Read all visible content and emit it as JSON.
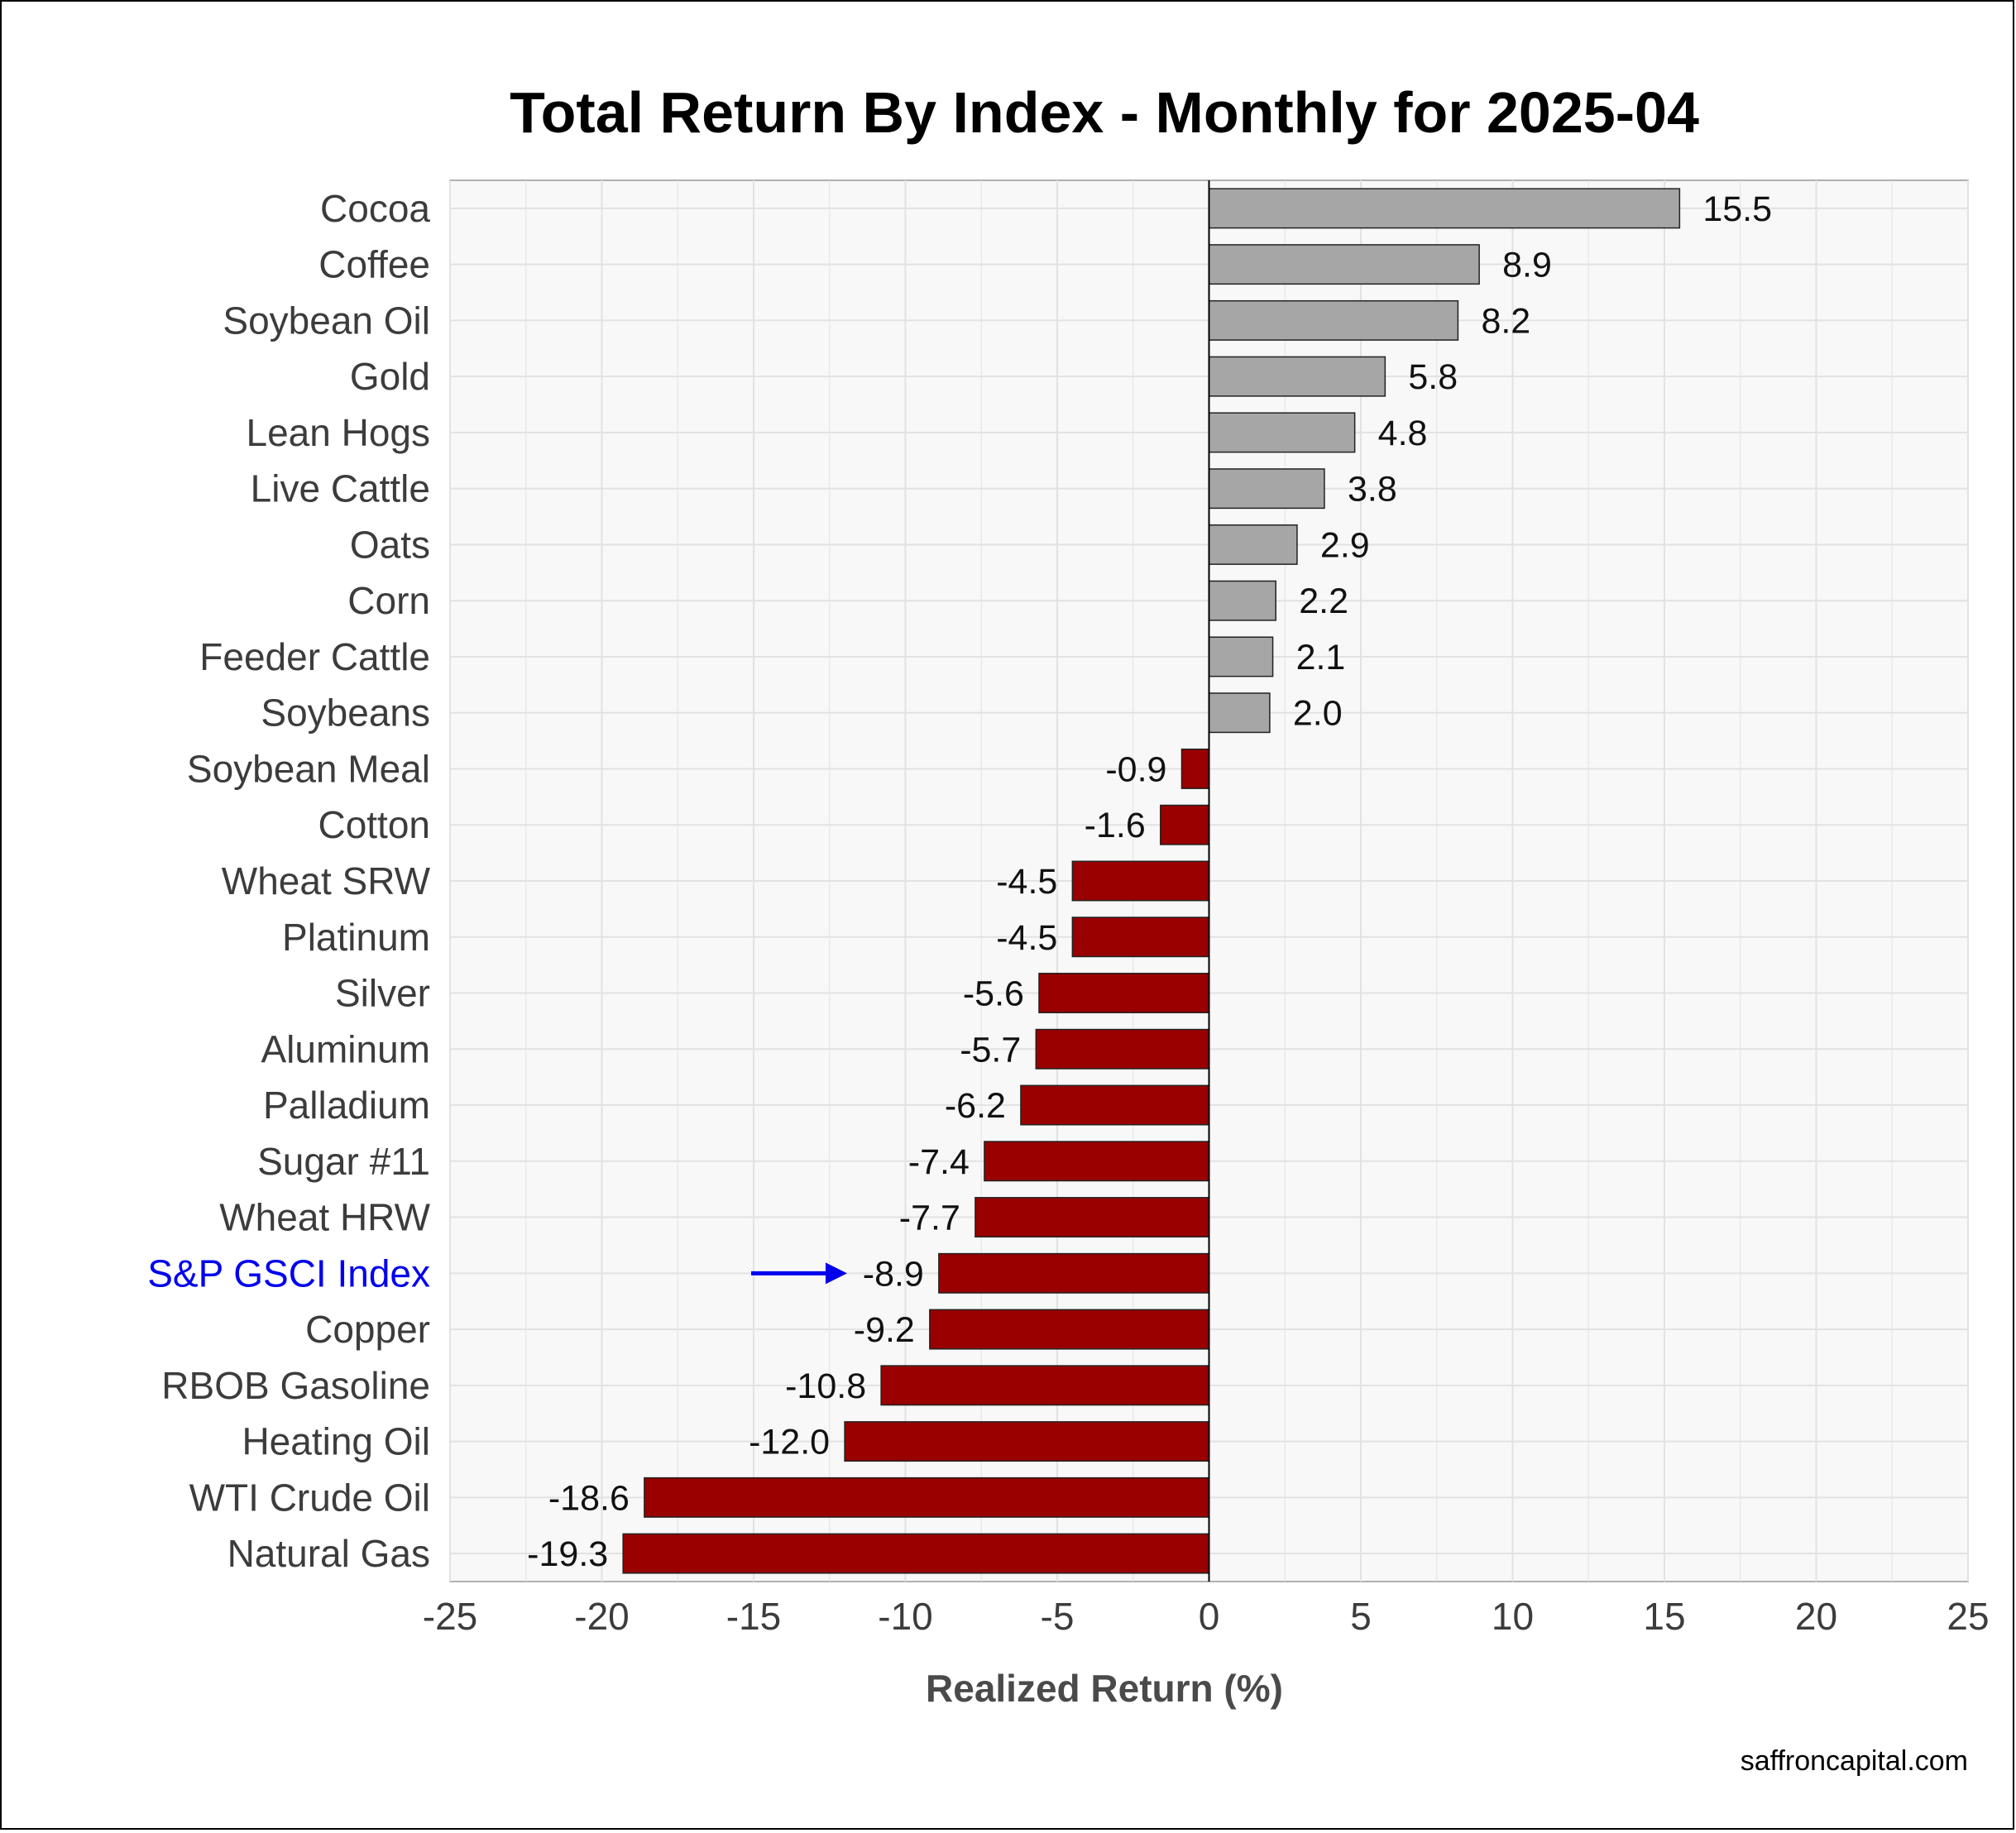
{
  "chart_data": {
    "type": "bar",
    "orientation": "horizontal",
    "title": "Total Return By Index - Monthly for 2025-04",
    "xlabel": "Realized Return (%)",
    "ylabel": "",
    "xlim": [
      -25,
      25
    ],
    "xticks": [
      "-25",
      "-20",
      "-15",
      "-10",
      "-5",
      "0",
      "5",
      "10",
      "15",
      "20",
      "25"
    ],
    "grid": true,
    "legend": "none",
    "source": "saffroncapital.com",
    "highlight": "S&P GSCI Index",
    "colors": {
      "positive": "#a6a6a6",
      "negative": "#990000",
      "highlight_text": "#0000ee",
      "arrow": "#0000ee",
      "panel_bg": "#f8f8f8",
      "grid": "#e2e2e2"
    },
    "categories": [
      "Cocoa",
      "Coffee",
      "Soybean Oil",
      "Gold",
      "Lean Hogs",
      "Live Cattle",
      "Oats",
      "Corn",
      "Feeder Cattle",
      "Soybeans",
      "Soybean Meal",
      "Cotton",
      "Wheat SRW",
      "Platinum",
      "Silver",
      "Aluminum",
      "Palladium",
      "Sugar #11",
      "Wheat HRW",
      "S&P GSCI Index",
      "Copper",
      "RBOB Gasoline",
      "Heating Oil",
      "WTI Crude Oil",
      "Natural Gas"
    ],
    "values": [
      15.5,
      8.9,
      8.2,
      5.8,
      4.8,
      3.8,
      2.9,
      2.2,
      2.1,
      2.0,
      -0.9,
      -1.6,
      -4.5,
      -4.5,
      -5.6,
      -5.7,
      -6.2,
      -7.4,
      -7.7,
      -8.9,
      -9.2,
      -10.8,
      -12.0,
      -18.6,
      -19.3
    ],
    "labels": [
      "15.5",
      "8.9",
      "8.2",
      "5.8",
      "4.8",
      "3.8",
      "2.9",
      "2.2",
      "2.1",
      "2.0",
      "-0.9",
      "-1.6",
      "-4.5",
      "-4.5",
      "-5.6",
      "-5.7",
      "-6.2",
      "-7.4",
      "-7.7",
      "-8.9",
      "-9.2",
      "-10.8",
      "-12.0",
      "-18.6",
      "-19.3"
    ]
  }
}
